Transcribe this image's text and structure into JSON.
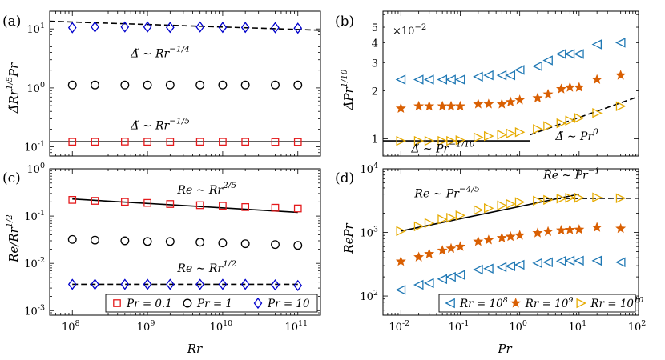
{
  "chart_data": [
    {
      "panel": "(a)",
      "type": "scatter",
      "xscale": "log",
      "yscale": "log",
      "xlim": [
        50000000.0,
        200000000000.0
      ],
      "ylim": [
        0.07,
        20
      ],
      "ylabel": "Δ̃Rr^{1/5}Pr",
      "yticks": [
        {
          "value": 0.1,
          "base": "10",
          "exp": "-1"
        },
        {
          "value": 1,
          "base": "10",
          "exp": "0"
        },
        {
          "value": 10,
          "base": "10",
          "exp": "1"
        }
      ],
      "series": [
        {
          "name": "Pr = 0.1",
          "marker": "square",
          "color": "#e41a1c",
          "x": [
            100000000.0,
            200000000.0,
            500000000.0,
            1000000000.0,
            2000000000.0,
            5000000000.0,
            10000000000.0,
            20000000000.0,
            50000000000.0,
            100000000000.0
          ],
          "y": [
            0.122,
            0.122,
            0.123,
            0.122,
            0.122,
            0.122,
            0.122,
            0.122,
            0.121,
            0.121
          ]
        },
        {
          "name": "Pr = 1",
          "marker": "circle",
          "color": "#000000",
          "x": [
            100000000.0,
            200000000.0,
            500000000.0,
            1000000000.0,
            2000000000.0,
            5000000000.0,
            10000000000.0,
            20000000000.0,
            50000000000.0,
            100000000000.0
          ],
          "y": [
            1.12,
            1.12,
            1.12,
            1.12,
            1.12,
            1.12,
            1.12,
            1.12,
            1.12,
            1.12
          ]
        },
        {
          "name": "Pr = 10",
          "marker": "diamond",
          "color": "#0000cc",
          "x": [
            100000000.0,
            200000000.0,
            500000000.0,
            1000000000.0,
            2000000000.0,
            5000000000.0,
            10000000000.0,
            20000000000.0,
            50000000000.0,
            100000000000.0
          ],
          "y": [
            10.5,
            10.8,
            10.8,
            10.8,
            10.6,
            10.8,
            10.6,
            10.6,
            10.5,
            10.3
          ]
        }
      ],
      "fits": [
        {
          "style": "dashed",
          "x": [
            50000000.0,
            200000000000.0
          ],
          "y": [
            13.5,
            9.5
          ]
        },
        {
          "style": "solid",
          "x": [
            50000000.0,
            200000000000.0
          ],
          "y": [
            0.122,
            0.122
          ]
        }
      ],
      "annotations": [
        {
          "text": "Δ̃ ∼ Rr",
          "sup": "−1/4",
          "x": 600000000.0,
          "y": 3.3
        },
        {
          "text": "Δ̃ ∼ Rr",
          "sup": "−1/5",
          "x": 600000000.0,
          "y": 0.2
        }
      ]
    },
    {
      "panel": "(b)",
      "type": "scatter",
      "xscale": "log",
      "yscale": "log",
      "xlim": [
        0.005,
        100
      ],
      "ylim": [
        0.0078,
        0.063
      ],
      "ylabel": "Δ̃Pr^{1/10}",
      "multiplier": "×10−2",
      "yticks": [
        {
          "value": 0.01,
          "label": "1"
        },
        {
          "value": 0.02,
          "label": "2"
        },
        {
          "value": 0.03,
          "label": "3"
        },
        {
          "value": 0.04,
          "label": "4"
        },
        {
          "value": 0.05,
          "label": "5"
        }
      ],
      "series": [
        {
          "name": "Rr = 10^8",
          "marker": "triangle-left",
          "color": "#1f78b4",
          "x": [
            0.01,
            0.02,
            0.03,
            0.05,
            0.07,
            0.1,
            0.2,
            0.3,
            0.5,
            0.7,
            1,
            2,
            3,
            5,
            7,
            10,
            20,
            50
          ],
          "y": [
            0.0235,
            0.0235,
            0.0235,
            0.0235,
            0.0235,
            0.0235,
            0.0245,
            0.025,
            0.025,
            0.025,
            0.027,
            0.0285,
            0.031,
            0.034,
            0.034,
            0.034,
            0.039,
            0.04
          ]
        },
        {
          "name": "Rr = 10^9",
          "marker": "star",
          "color": "#d95f02",
          "x": [
            0.01,
            0.02,
            0.03,
            0.05,
            0.07,
            0.1,
            0.2,
            0.3,
            0.5,
            0.7,
            1,
            2,
            3,
            5,
            7,
            10,
            20,
            50
          ],
          "y": [
            0.0155,
            0.016,
            0.016,
            0.016,
            0.016,
            0.016,
            0.0165,
            0.0165,
            0.0165,
            0.017,
            0.0175,
            0.018,
            0.019,
            0.0205,
            0.021,
            0.021,
            0.0235,
            0.025
          ]
        },
        {
          "name": "Rr = 10^10",
          "marker": "triangle-right",
          "color": "#e6ab02",
          "x": [
            0.01,
            0.02,
            0.03,
            0.05,
            0.07,
            0.1,
            0.2,
            0.3,
            0.5,
            0.7,
            1,
            2,
            3,
            5,
            7,
            10,
            20,
            50
          ],
          "y": [
            0.0097,
            0.0097,
            0.0097,
            0.0097,
            0.0097,
            0.0098,
            0.0102,
            0.0104,
            0.0106,
            0.0108,
            0.011,
            0.0115,
            0.012,
            0.0125,
            0.013,
            0.0135,
            0.0145,
            0.016
          ]
        }
      ],
      "fits": [
        {
          "style": "solid",
          "x": [
            0.005,
            1.5
          ],
          "y": [
            0.0097,
            0.0097
          ]
        },
        {
          "style": "dashed",
          "x": [
            1.5,
            100
          ],
          "y": [
            0.0106,
            0.0184
          ]
        }
      ],
      "annotations": [
        {
          "text": "Δ̃ ∼ Pr",
          "sup": "−1/10",
          "x": 0.015,
          "y": 0.0082
        },
        {
          "text": "Δ̃ ∼ Pr",
          "sup": "0",
          "x": 4,
          "y": 0.0098
        }
      ]
    },
    {
      "panel": "(c)",
      "type": "scatter",
      "xscale": "log",
      "yscale": "log",
      "xlim": [
        50000000.0,
        200000000000.0
      ],
      "ylim": [
        0.0008,
        1
      ],
      "xlabel": "Rr",
      "ylabel": "Re/Rr^{1/2}",
      "xticks": [
        {
          "value": 100000000.0,
          "base": "10",
          "exp": "8"
        },
        {
          "value": 1000000000.0,
          "base": "10",
          "exp": "9"
        },
        {
          "value": 10000000000.0,
          "base": "10",
          "exp": "10"
        },
        {
          "value": 100000000000.0,
          "base": "10",
          "exp": "11"
        }
      ],
      "yticks": [
        {
          "value": 0.001,
          "base": "10",
          "exp": "-3"
        },
        {
          "value": 0.01,
          "base": "10",
          "exp": "-2"
        },
        {
          "value": 0.1,
          "base": "10",
          "exp": "-1"
        },
        {
          "value": 1,
          "base": "10",
          "exp": "0"
        }
      ],
      "series": [
        {
          "name": "Pr = 0.1",
          "marker": "square",
          "color": "#e41a1c",
          "x": [
            100000000.0,
            200000000.0,
            500000000.0,
            1000000000.0,
            2000000000.0,
            5000000000.0,
            10000000000.0,
            20000000000.0,
            50000000000.0,
            100000000000.0
          ],
          "y": [
            0.22,
            0.21,
            0.2,
            0.19,
            0.18,
            0.17,
            0.165,
            0.155,
            0.15,
            0.145
          ]
        },
        {
          "name": "Pr = 1",
          "marker": "circle",
          "color": "#000000",
          "x": [
            100000000.0,
            200000000.0,
            500000000.0,
            1000000000.0,
            2000000000.0,
            5000000000.0,
            10000000000.0,
            20000000000.0,
            50000000000.0,
            100000000000.0
          ],
          "y": [
            0.032,
            0.031,
            0.03,
            0.029,
            0.029,
            0.028,
            0.027,
            0.026,
            0.025,
            0.024
          ]
        },
        {
          "name": "Pr = 10",
          "marker": "diamond",
          "color": "#0000cc",
          "x": [
            100000000.0,
            200000000.0,
            500000000.0,
            1000000000.0,
            2000000000.0,
            5000000000.0,
            10000000000.0,
            20000000000.0,
            50000000000.0,
            100000000000.0
          ],
          "y": [
            0.0036,
            0.0036,
            0.0036,
            0.0036,
            0.0036,
            0.0036,
            0.0036,
            0.0036,
            0.0035,
            0.0034
          ]
        }
      ],
      "fits": [
        {
          "style": "solid",
          "x": [
            100000000.0,
            100000000000.0
          ],
          "y": [
            0.23,
            0.12
          ]
        },
        {
          "style": "dashed",
          "x": [
            100000000.0,
            100000000000.0
          ],
          "y": [
            0.0036,
            0.0036
          ]
        }
      ],
      "annotations": [
        {
          "text": "Re ∼ Rr",
          "sup": "2/5",
          "x": 2500000000.0,
          "y": 0.3
        },
        {
          "text": "Re ∼ Rr",
          "sup": "1/2",
          "x": 2500000000.0,
          "y": 0.0066
        }
      ],
      "legend": {
        "placement": "bottom",
        "entries": [
          "Pr = 0.1",
          "Pr = 1",
          "Pr = 10"
        ]
      }
    },
    {
      "panel": "(d)",
      "type": "scatter",
      "xscale": "log",
      "yscale": "log",
      "xlim": [
        0.005,
        100
      ],
      "ylim": [
        50,
        10000
      ],
      "xlabel": "Pr",
      "ylabel": "RePr",
      "xticks": [
        {
          "value": 0.01,
          "base": "10",
          "exp": "-2"
        },
        {
          "value": 0.1,
          "base": "10",
          "exp": "-1"
        },
        {
          "value": 1,
          "base": "10",
          "exp": "0"
        },
        {
          "value": 10,
          "base": "10",
          "exp": "1"
        },
        {
          "value": 100,
          "base": "10",
          "exp": "2"
        }
      ],
      "yticks": [
        {
          "value": 100,
          "base": "10",
          "exp": "2"
        },
        {
          "value": 1000,
          "base": "10",
          "exp": "3"
        },
        {
          "value": 10000,
          "base": "10",
          "exp": "4"
        }
      ],
      "series": [
        {
          "name": "Rr = 10^8",
          "marker": "triangle-left",
          "color": "#1f78b4",
          "x": [
            0.01,
            0.02,
            0.03,
            0.05,
            0.07,
            0.1,
            0.2,
            0.3,
            0.5,
            0.7,
            1,
            2,
            3,
            5,
            7,
            10,
            20,
            50
          ],
          "y": [
            125,
            150,
            160,
            185,
            200,
            215,
            260,
            270,
            285,
            295,
            310,
            330,
            340,
            355,
            360,
            360,
            360,
            340
          ]
        },
        {
          "name": "Rr = 10^9",
          "marker": "star",
          "color": "#d95f02",
          "x": [
            0.01,
            0.02,
            0.03,
            0.05,
            0.07,
            0.1,
            0.2,
            0.3,
            0.5,
            0.7,
            1,
            2,
            3,
            5,
            7,
            10,
            20,
            50
          ],
          "y": [
            350,
            410,
            460,
            520,
            560,
            600,
            720,
            760,
            820,
            860,
            900,
            980,
            1030,
            1080,
            1100,
            1110,
            1200,
            1150
          ]
        },
        {
          "name": "Rr = 10^10",
          "marker": "triangle-right",
          "color": "#e6ab02",
          "x": [
            0.01,
            0.02,
            0.03,
            0.05,
            0.07,
            0.1,
            0.2,
            0.3,
            0.5,
            0.7,
            1,
            2,
            3,
            5,
            7,
            10,
            20,
            50
          ],
          "y": [
            1050,
            1250,
            1400,
            1600,
            1700,
            1850,
            2250,
            2400,
            2650,
            2800,
            3000,
            3150,
            3250,
            3400,
            3500,
            3500,
            3550,
            3450
          ]
        }
      ],
      "fits": [
        {
          "style": "solid",
          "x": [
            0.01,
            10
          ],
          "y": [
            1050,
            4000
          ]
        },
        {
          "style": "dashed",
          "x": [
            2,
            100
          ],
          "y": [
            3400,
            3450
          ]
        }
      ],
      "annotations": [
        {
          "text": "Re ∼ Pr",
          "sup": "−4/5",
          "x": 0.017,
          "y": 3600
        },
        {
          "text": "Re ∼ Pr",
          "sup": "−1",
          "x": 2.5,
          "y": 7000
        }
      ],
      "legend": {
        "placement": "bottom",
        "entries": [
          "Rr = 10^8",
          "Rr = 10^9",
          "Rr = 10^10"
        ]
      }
    }
  ],
  "labels": {
    "panel_a": "(a)",
    "panel_b": "(b)",
    "panel_c": "(c)",
    "panel_d": "(d)",
    "multiplier_base": "×10",
    "multiplier_exp": "−2",
    "ylabel_a_main": "Δ̃Rr",
    "ylabel_a_sup": "1/5",
    "ylabel_a_tail": "Pr",
    "ylabel_b_main": "Δ̃Pr",
    "ylabel_b_sup": "1/10",
    "ylabel_c_main": "Re/Rr",
    "ylabel_c_sup": "1/2",
    "ylabel_d": "RePr",
    "xlabel_c": "Rr",
    "xlabel_d": "Pr",
    "legend_c": [
      "Pr = 0.1",
      "Pr = 1",
      "Pr = 10"
    ],
    "legend_d_base": [
      "Rr = 10",
      "Rr = 10",
      "Rr = 10"
    ],
    "legend_d_exp": [
      "8",
      "9",
      "10"
    ]
  }
}
